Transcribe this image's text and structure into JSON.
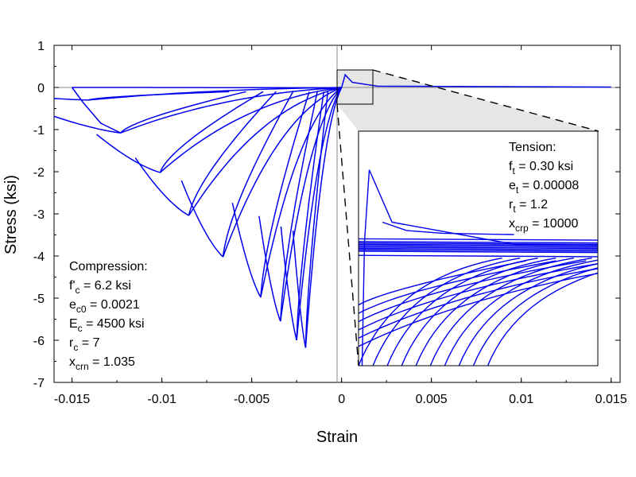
{
  "chart_data": {
    "type": "line",
    "xlabel": "Strain",
    "ylabel": "Stress (ksi)",
    "xlim": [
      -0.016,
      0.0155
    ],
    "ylim": [
      -7,
      1
    ],
    "x_ticks": [
      -0.015,
      -0.01,
      -0.005,
      0,
      0.005,
      0.01,
      0.015
    ],
    "x_tick_labels": [
      "-0.015",
      "-0.01",
      "-0.005",
      "0",
      "0.005",
      "0.01",
      "0.015"
    ],
    "y_ticks": [
      1,
      0,
      -1,
      -2,
      -3,
      -4,
      -5,
      -6,
      -7
    ],
    "y_tick_labels": [
      "1",
      "0",
      "-1",
      "-2",
      "-3",
      "-4",
      "-5",
      "-6",
      "-7"
    ],
    "grid": false,
    "series_color": "#0000ee",
    "envelope": {
      "compression_peaks": [
        [
          -0.002,
          -6.15
        ],
        [
          -0.0029,
          -5.85
        ],
        [
          -0.0036,
          -5.45
        ],
        [
          -0.0045,
          -4.95
        ],
        [
          -0.0065,
          -4.0
        ],
        [
          -0.0086,
          -3.05
        ],
        [
          -0.0103,
          -2.3
        ],
        [
          -0.012,
          -1.6
        ],
        [
          -0.0134,
          -0.85
        ],
        [
          -0.0144,
          -0.35
        ],
        [
          -0.015,
          0.0
        ]
      ]
    },
    "cycles": [
      {
        "envelope_strain": -0.015,
        "envelope_stress": 0.0,
        "curve_to": [
          -0.0004,
          -0.01
        ]
      },
      {
        "envelope_strain": -0.0141,
        "envelope_stress": -0.3,
        "unload_to": [
          -0.0139,
          -0.32
        ],
        "reload_to": [
          -0.0002,
          -0.2
        ]
      },
      {
        "envelope_strain": -0.0123,
        "envelope_stress": -1.08,
        "unload_to": [
          -0.0118,
          -1.1
        ],
        "reload_to": [
          -0.0002,
          -0.3
        ]
      },
      {
        "envelope_strain": -0.0101,
        "envelope_stress": -2.02,
        "unload_to": [
          -0.0097,
          -2.0
        ],
        "reload_to": [
          -0.0002,
          -0.35
        ]
      },
      {
        "envelope_strain": -0.0085,
        "envelope_stress": -3.04,
        "unload_to": [
          -0.0081,
          -3.0
        ],
        "reload_to": [
          -0.0002,
          -0.4
        ]
      },
      {
        "envelope_strain": -0.0066,
        "envelope_stress": -4.02,
        "unload_to": [
          -0.006,
          -3.95
        ],
        "reload_to": [
          -0.0002,
          -0.5
        ]
      },
      {
        "envelope_strain": -0.0045,
        "envelope_stress": -4.98,
        "unload_to": [
          -0.004,
          -4.85
        ],
        "reload_to": [
          -0.0002,
          -0.6
        ]
      },
      {
        "envelope_strain": -0.0034,
        "envelope_stress": -5.55,
        "unload_to": [
          -0.003,
          -5.4
        ],
        "reload_to": [
          -0.0002,
          -0.7
        ]
      },
      {
        "envelope_strain": -0.0025,
        "envelope_stress": -6.0,
        "unload_to": [
          -0.0022,
          -5.9
        ],
        "reload_to": [
          -0.0002,
          -0.8
        ]
      },
      {
        "envelope_strain": -0.002,
        "envelope_stress": -6.18,
        "unload_to": [
          -0.0017,
          -6.05
        ],
        "reload_to": [
          -0.0002,
          -0.9
        ]
      }
    ],
    "inset": {
      "zoom_x_range": [
        0,
        0.002
      ],
      "zoom_y_range": [
        -0.4,
        0.45
      ],
      "tension_peak": [
        8e-05,
        0.3
      ],
      "label": "Tension:"
    },
    "annotations": {
      "compression": {
        "title": "Compression:",
        "lines": [
          {
            "main": "f'",
            "sub": "c",
            "rest": " = 6.2 ksi"
          },
          {
            "main": "e",
            "sub": "c0",
            "rest": " = 0.0021"
          },
          {
            "main": "E",
            "sub": "c",
            "rest": " = 4500 ksi"
          },
          {
            "main": "r",
            "sub": "c",
            "rest": " = 7"
          },
          {
            "main": "x",
            "sub": "crn",
            "rest": " = 1.035"
          }
        ]
      },
      "tension": {
        "title": "Tension:",
        "lines": [
          {
            "main": "f",
            "sub": "t",
            "rest": " = 0.30 ksi"
          },
          {
            "main": "e",
            "sub": "t",
            "rest": " = 0.00008"
          },
          {
            "main": "r",
            "sub": "t",
            "rest": " = 1.2"
          },
          {
            "main": "x",
            "sub": "crp",
            "rest": " = 10000"
          }
        ]
      }
    }
  }
}
